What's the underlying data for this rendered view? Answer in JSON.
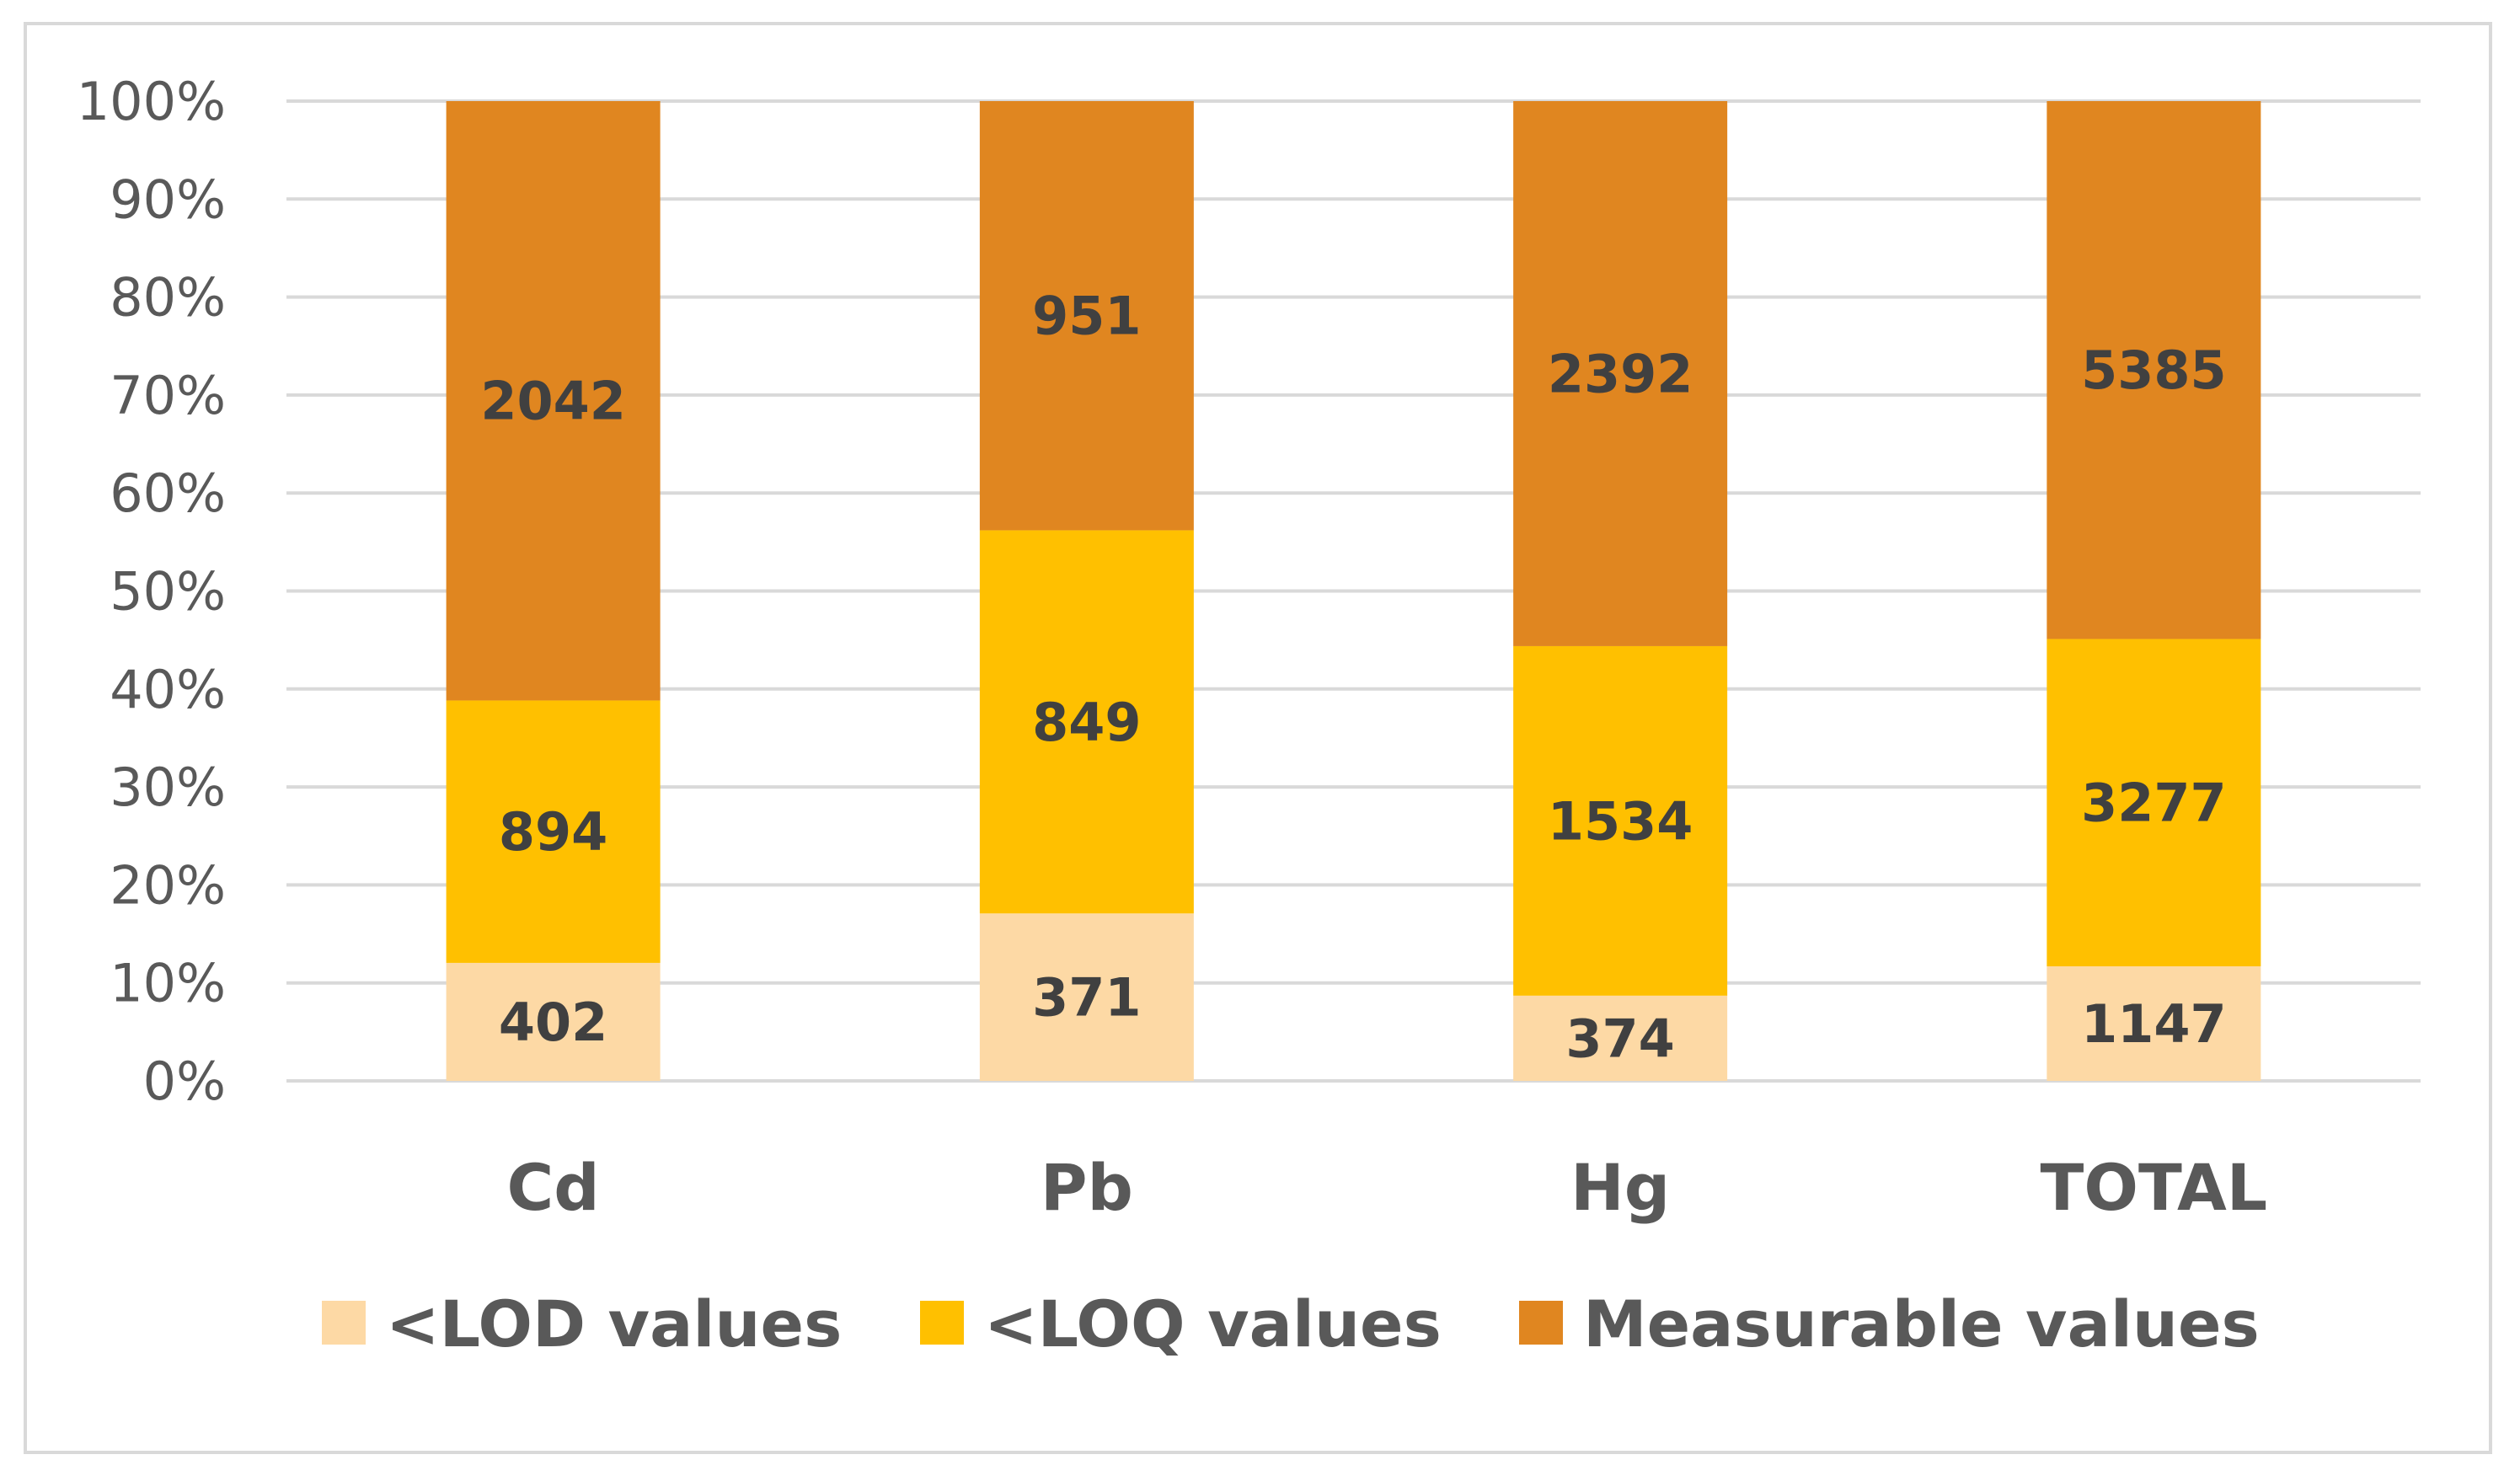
{
  "chart_data": {
    "type": "bar",
    "stacked": "percent",
    "title": "",
    "xlabel": "",
    "ylabel": "",
    "ylim": [
      0,
      100
    ],
    "y_ticks": [
      "0%",
      "10%",
      "20%",
      "30%",
      "40%",
      "50%",
      "60%",
      "70%",
      "80%",
      "90%",
      "100%"
    ],
    "grid": true,
    "legend_position": "bottom",
    "categories": [
      "Cd",
      "Pb",
      "Hg",
      "TOTAL"
    ],
    "series": [
      {
        "name": "<LOD values",
        "color": "#fdd9a5",
        "values": [
          402,
          371,
          374,
          1147
        ]
      },
      {
        "name": "<LOQ values",
        "color": "#ffc000",
        "values": [
          894,
          849,
          1534,
          3277
        ]
      },
      {
        "name": "Measurable values",
        "color": "#e08620",
        "values": [
          2042,
          951,
          2392,
          5385
        ]
      }
    ]
  }
}
